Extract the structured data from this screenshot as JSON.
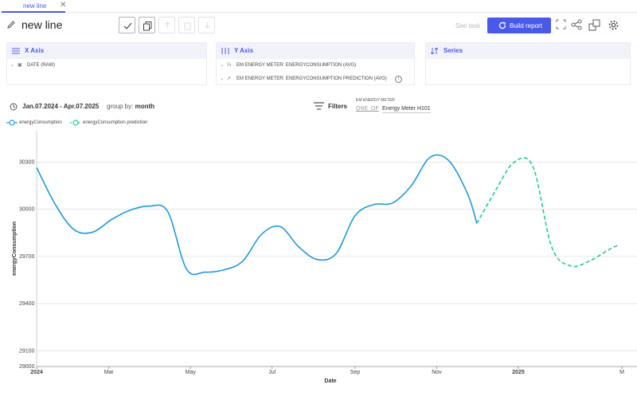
{
  "tab": {
    "label": "new line",
    "close": "✕"
  },
  "toolbar": {
    "title": "new line",
    "see_task": "See task",
    "build_label": "Build report"
  },
  "panels": {
    "x_axis": {
      "title": "X Axis",
      "fields": [
        "DATE (RAW)"
      ]
    },
    "y_axis": {
      "title": "Y Axis",
      "fields": [
        "EM ENERGY METER: ENERGYCONSUMPTION (AVG)",
        "EM ENERGY METER: ENERGYCONSUMPTION PREDICTION (AVG)"
      ]
    },
    "series": {
      "title": "Series"
    }
  },
  "filters_bar": {
    "date_range": "Jan.07.2024 - Apr.07.2025",
    "group_by_label": "group by:",
    "group_by_value": "month",
    "filters_label": "Filters",
    "filter_field": "EM ENERGY METER",
    "filter_op": "ONE_OF",
    "filter_value": "Energy Meter H101"
  },
  "colors": {
    "accent": "#4a5ae8",
    "series1": "#1f9ad6",
    "series2": "#20c997"
  },
  "chart_data": {
    "type": "line",
    "xlabel": "Date",
    "ylabel": "energyConsumption",
    "ylim": [
      29000,
      30500
    ],
    "x_ticks": [
      "2024",
      "Mar",
      "May",
      "Jul",
      "Sep",
      "Nov",
      "2025",
      "M"
    ],
    "y_ticks": [
      29000,
      29100,
      29400,
      29700,
      30000,
      30300
    ],
    "series": [
      {
        "name": "energyConsumption",
        "style": "solid",
        "points": [
          [
            "2024-01-07",
            30265
          ],
          [
            "2024-01-21",
            30030
          ],
          [
            "2024-02-04",
            29870
          ],
          [
            "2024-02-18",
            29855
          ],
          [
            "2024-03-03",
            29935
          ],
          [
            "2024-03-17",
            29995
          ],
          [
            "2024-03-31",
            30020
          ],
          [
            "2024-04-14",
            29985
          ],
          [
            "2024-04-28",
            29620
          ],
          [
            "2024-05-12",
            29600
          ],
          [
            "2024-05-26",
            29615
          ],
          [
            "2024-06-09",
            29670
          ],
          [
            "2024-06-23",
            29840
          ],
          [
            "2024-07-07",
            29890
          ],
          [
            "2024-07-21",
            29760
          ],
          [
            "2024-08-04",
            29680
          ],
          [
            "2024-08-18",
            29720
          ],
          [
            "2024-09-01",
            29960
          ],
          [
            "2024-09-15",
            30030
          ],
          [
            "2024-09-29",
            30040
          ],
          [
            "2024-10-13",
            30150
          ],
          [
            "2024-10-27",
            30330
          ],
          [
            "2024-11-10",
            30310
          ],
          [
            "2024-11-24",
            30100
          ],
          [
            "2024-12-01",
            29910
          ]
        ]
      },
      {
        "name": "energyConsumption prediction",
        "style": "dashed",
        "points": [
          [
            "2024-12-01",
            29910
          ],
          [
            "2024-12-15",
            30120
          ],
          [
            "2024-12-29",
            30300
          ],
          [
            "2025-01-12",
            30270
          ],
          [
            "2025-01-26",
            29760
          ],
          [
            "2025-02-09",
            29640
          ],
          [
            "2025-02-23",
            29670
          ],
          [
            "2025-03-09",
            29740
          ],
          [
            "2025-03-16",
            29770
          ]
        ]
      }
    ]
  }
}
